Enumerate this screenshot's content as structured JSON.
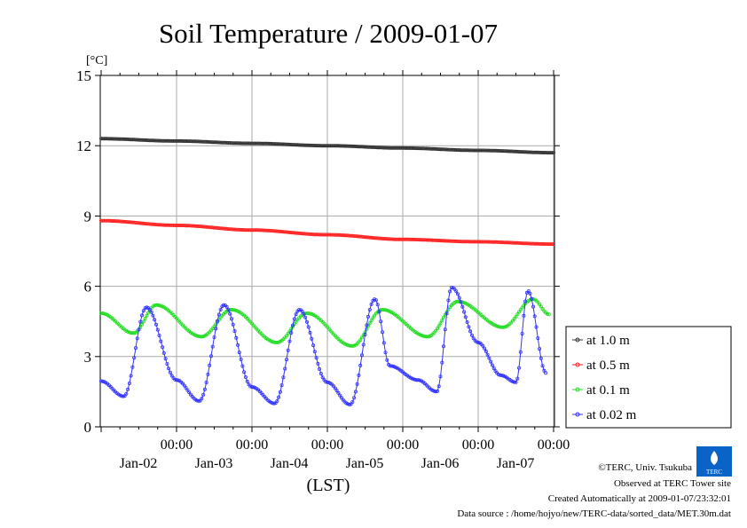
{
  "chart_data": {
    "type": "line",
    "title": "Soil Temperature / 2009-01-07",
    "ylabel": "[°C]",
    "xlabel": "(LST)",
    "ylim": [
      0,
      15
    ],
    "xlim": [
      0,
      6
    ],
    "grid": true,
    "legend_position": "right",
    "yticks": [
      "0",
      "3",
      "6",
      "9",
      "12",
      "15"
    ],
    "xticks": [
      {
        "x": 1,
        "time": "00:00",
        "date": "Jan-02"
      },
      {
        "x": 2,
        "time": "00:00",
        "date": "Jan-03"
      },
      {
        "x": 3,
        "time": "00:00",
        "date": "Jan-04"
      },
      {
        "x": 4,
        "time": "00:00",
        "date": "Jan-05"
      },
      {
        "x": 5,
        "time": "00:00",
        "date": "Jan-06"
      },
      {
        "x": 6,
        "time": "00:00",
        "date": "Jan-07"
      }
    ],
    "series": [
      {
        "name": "at 1.0 m",
        "color": "#333333",
        "points": [
          [
            0,
            12.3
          ],
          [
            1,
            12.2
          ],
          [
            2,
            12.1
          ],
          [
            3,
            12.0
          ],
          [
            4,
            11.9
          ],
          [
            5,
            11.8
          ],
          [
            6,
            11.7
          ]
        ]
      },
      {
        "name": "at 0.5 m",
        "color": "#ff2222",
        "points": [
          [
            0,
            8.8
          ],
          [
            1,
            8.6
          ],
          [
            2,
            8.4
          ],
          [
            3,
            8.2
          ],
          [
            4,
            8.0
          ],
          [
            5,
            7.9
          ],
          [
            6,
            7.8
          ]
        ]
      },
      {
        "name": "at 0.1 m",
        "color": "#22dd22",
        "points": [
          [
            0,
            4.85
          ],
          [
            0.43,
            4.0
          ],
          [
            0.73,
            5.2
          ],
          [
            1.33,
            3.85
          ],
          [
            1.73,
            5.0
          ],
          [
            2.33,
            3.6
          ],
          [
            2.73,
            4.85
          ],
          [
            3.33,
            3.45
          ],
          [
            3.73,
            5.0
          ],
          [
            4.33,
            3.85
          ],
          [
            4.73,
            5.35
          ],
          [
            5.33,
            4.25
          ],
          [
            5.73,
            5.45
          ],
          [
            5.94,
            4.8
          ]
        ]
      },
      {
        "name": "at 0.02 m",
        "color": "#3333ff",
        "points": [
          [
            0,
            1.95
          ],
          [
            0.3,
            1.3
          ],
          [
            0.6,
            5.1
          ],
          [
            1.0,
            2.0
          ],
          [
            1.3,
            1.1
          ],
          [
            1.63,
            5.2
          ],
          [
            2.0,
            1.7
          ],
          [
            2.3,
            1.0
          ],
          [
            2.63,
            5.0
          ],
          [
            3.0,
            1.9
          ],
          [
            3.3,
            0.95
          ],
          [
            3.63,
            5.45
          ],
          [
            3.83,
            2.6
          ],
          [
            4.2,
            2.0
          ],
          [
            4.45,
            1.5
          ],
          [
            4.65,
            5.95
          ],
          [
            5.0,
            3.6
          ],
          [
            5.3,
            2.2
          ],
          [
            5.5,
            1.9
          ],
          [
            5.66,
            5.8
          ],
          [
            5.9,
            2.3
          ]
        ]
      }
    ]
  },
  "credits": {
    "line1": "©TERC, Univ. Tsukuba",
    "line2": "Observed at TERC Tower site",
    "line3": "Created Automatically at 2009-01-07/23:32:01",
    "line4": "Data source : /home/hojyo/new/TERC-data/sorted_data/MET.30m.dat"
  },
  "logo_text": "TERC"
}
